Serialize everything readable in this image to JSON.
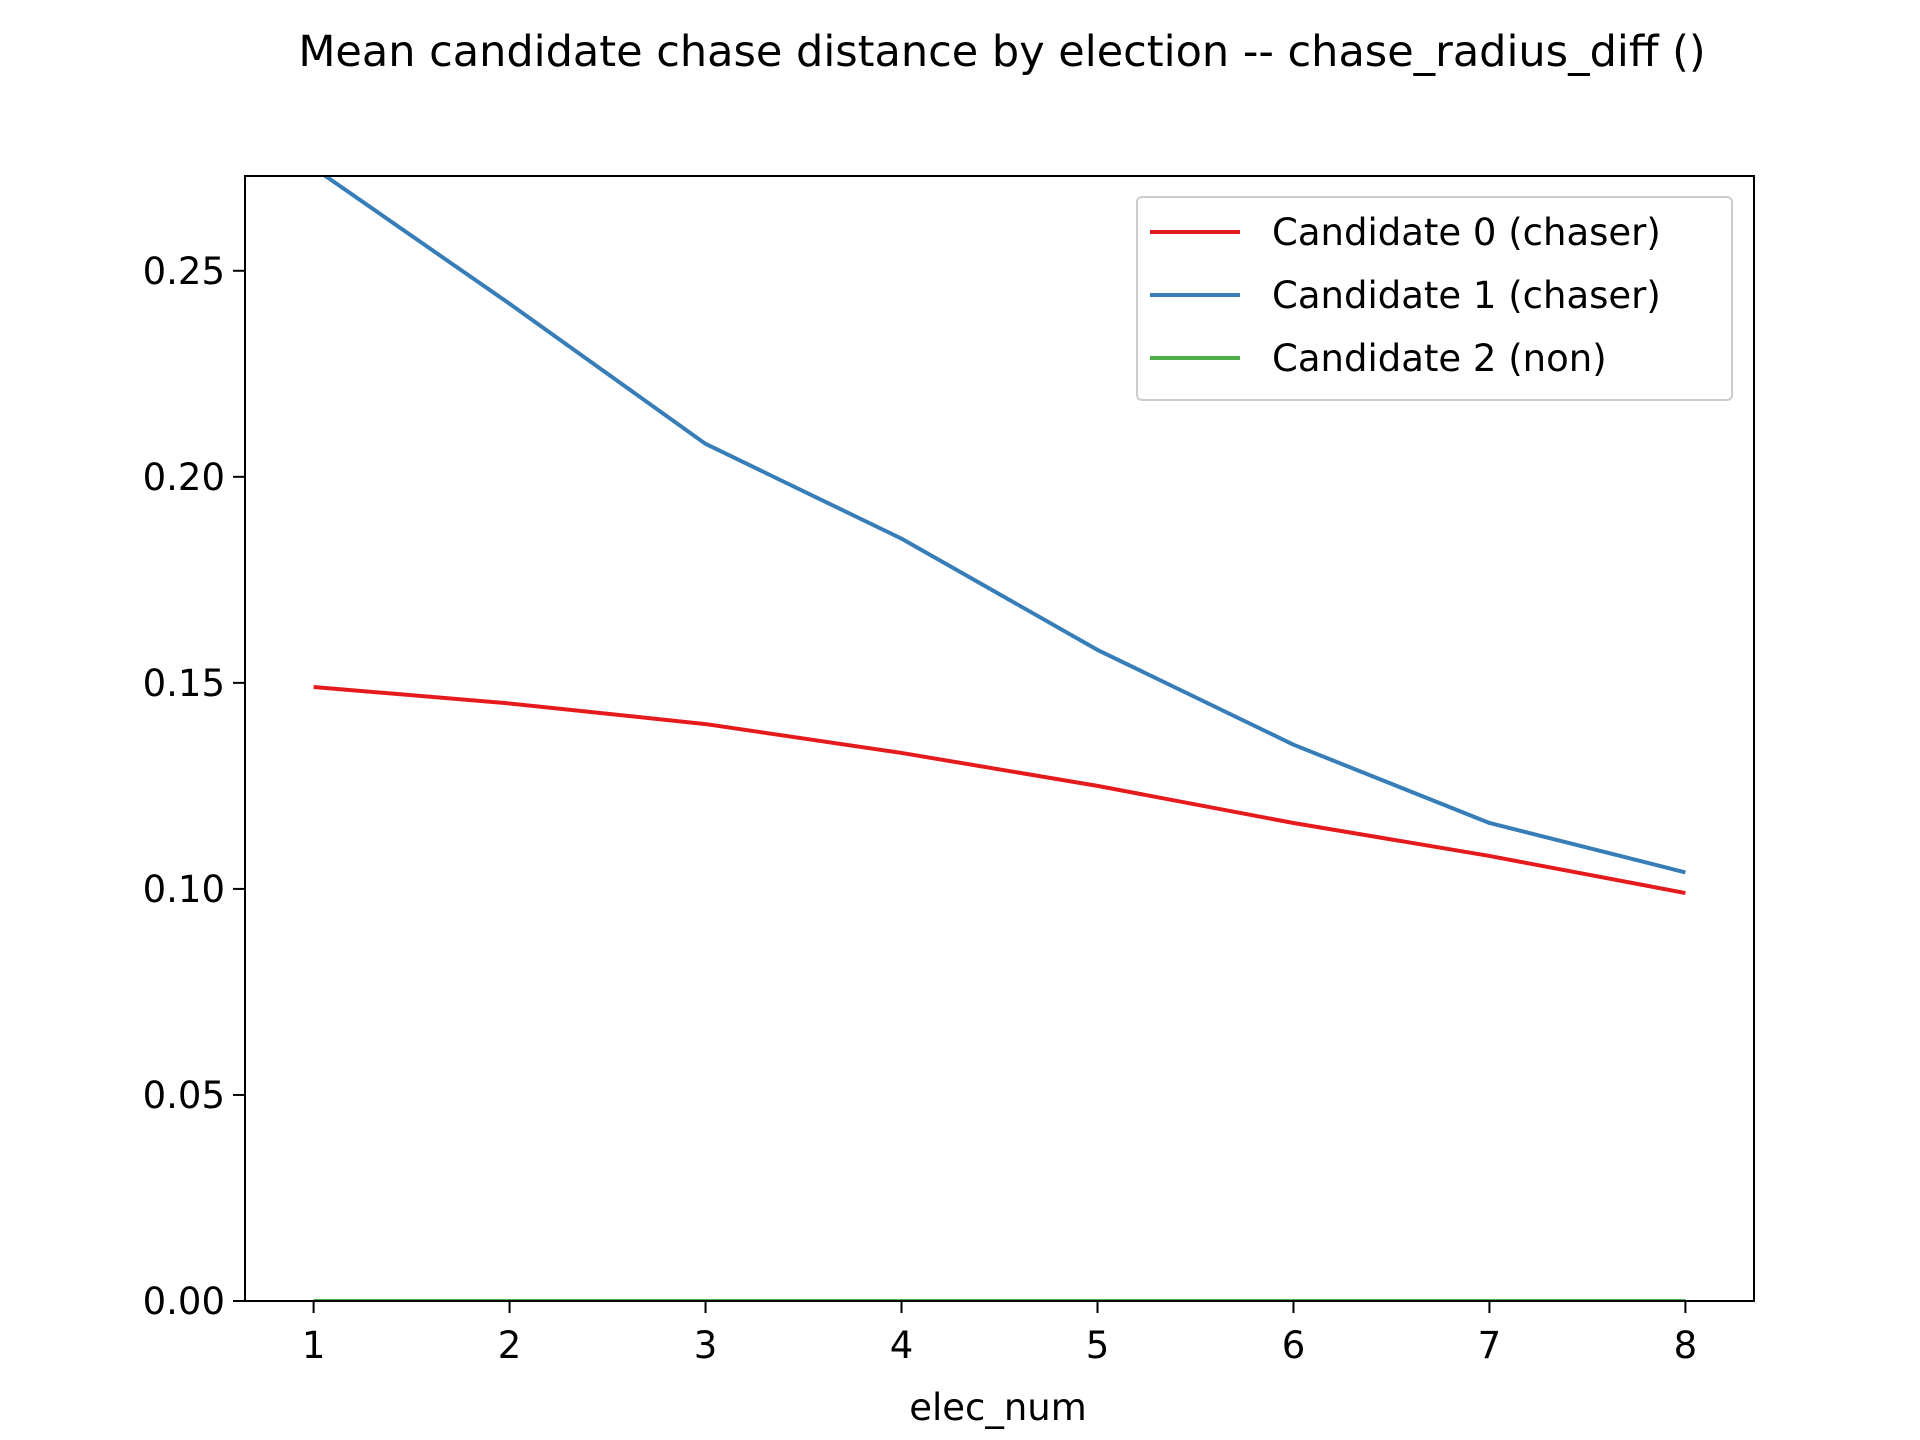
{
  "chart_data": {
    "type": "line",
    "title": "Mean candidate chase distance by election -- chase_radius_diff ()",
    "xlabel": "elec_num",
    "ylabel": "",
    "x": [
      1,
      2,
      3,
      4,
      5,
      6,
      7,
      8
    ],
    "xticks": [
      "1",
      "2",
      "3",
      "4",
      "5",
      "6",
      "7",
      "8"
    ],
    "yticks": [
      "0.00",
      "0.05",
      "0.10",
      "0.15",
      "0.20",
      "0.25"
    ],
    "xlim": [
      0.65,
      8.35
    ],
    "ylim": [
      0.0,
      0.273
    ],
    "grid": false,
    "legend_position": "top-right",
    "series": [
      {
        "name": "Candidate 0 (chaser)",
        "color": "#e41a1c",
        "values": [
          0.149,
          0.145,
          0.14,
          0.133,
          0.125,
          0.116,
          0.108,
          0.099
        ]
      },
      {
        "name": "Candidate 1 (chaser)",
        "color": "#377eb8",
        "values": [
          0.275,
          0.242,
          0.208,
          0.185,
          0.158,
          0.135,
          0.116,
          0.104
        ]
      },
      {
        "name": "Candidate 2 (non)",
        "color": "#4daf4a",
        "values": [
          0,
          0,
          0,
          0,
          0,
          0,
          0,
          0
        ]
      }
    ]
  }
}
